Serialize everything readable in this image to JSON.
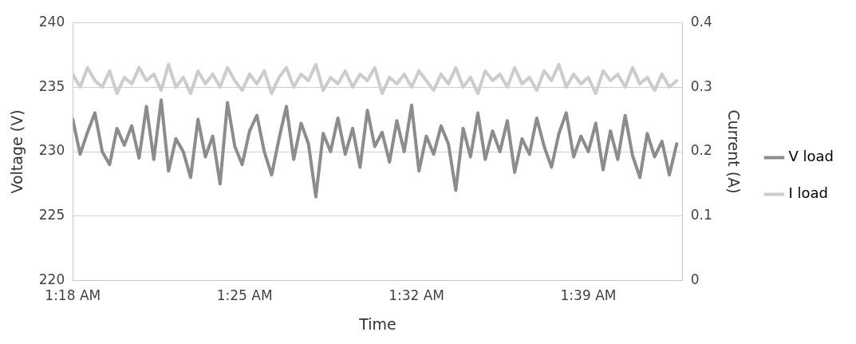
{
  "chart_data": {
    "type": "line",
    "xlabel": "Time",
    "ylabel": "Voltage (V)",
    "y2label": "Current (A)",
    "x": [
      1.3,
      1.305,
      1.31,
      1.315,
      1.32,
      1.325,
      1.33,
      1.335,
      1.34,
      1.345,
      1.35,
      1.355,
      1.36,
      1.365,
      1.37,
      1.375,
      1.38,
      1.385,
      1.39,
      1.395,
      1.4,
      1.405,
      1.41,
      1.415,
      1.42,
      1.425,
      1.43,
      1.435,
      1.44,
      1.445,
      1.45,
      1.455,
      1.46,
      1.465,
      1.47,
      1.475,
      1.48,
      1.485,
      1.49,
      1.495,
      1.5,
      1.505,
      1.51,
      1.515,
      1.52,
      1.525,
      1.53,
      1.535,
      1.54,
      1.545,
      1.55,
      1.555,
      1.56,
      1.565,
      1.57,
      1.575,
      1.58,
      1.585,
      1.59,
      1.595,
      1.6,
      1.605,
      1.61,
      1.615,
      1.62,
      1.625,
      1.63,
      1.635,
      1.64,
      1.645,
      1.65,
      1.655,
      1.66,
      1.665,
      1.67,
      1.675,
      1.68,
      1.685,
      1.69,
      1.695,
      1.7,
      1.705,
      1.71
    ],
    "series": [
      {
        "name": "V load",
        "color": "#8c8c8c",
        "axis": "y",
        "values": [
          232.5,
          229.8,
          231.5,
          233,
          230,
          229,
          231.8,
          230.5,
          232,
          229.5,
          233.5,
          229.4,
          234,
          228.5,
          231,
          230,
          228,
          232.5,
          229.6,
          231.2,
          227.5,
          233.8,
          230.4,
          229,
          231.6,
          232.8,
          230,
          228.2,
          231,
          233.5,
          229.4,
          232.2,
          230.6,
          226.5,
          231.4,
          230,
          232.6,
          229.8,
          231.8,
          228.8,
          233.2,
          230.4,
          231.5,
          229.2,
          232.4,
          230,
          233.6,
          228.5,
          231.2,
          229.8,
          232,
          230.6,
          227,
          231.8,
          229.6,
          233,
          229.4,
          231.6,
          230,
          232.4,
          228.4,
          231,
          229.8,
          232.6,
          230.4,
          228.8,
          231.4,
          233,
          229.6,
          231.2,
          230,
          232.2,
          228.6,
          231.6,
          229.4,
          232.8,
          229.7,
          228,
          231.4,
          229.6,
          230.8,
          228.2,
          230.6
        ]
      },
      {
        "name": "I load",
        "color": "#cccccc",
        "axis": "y2",
        "values": [
          0.32,
          0.3,
          0.33,
          0.31,
          0.3,
          0.325,
          0.29,
          0.315,
          0.305,
          0.33,
          0.31,
          0.32,
          0.295,
          0.335,
          0.3,
          0.315,
          0.29,
          0.325,
          0.305,
          0.32,
          0.3,
          0.33,
          0.31,
          0.295,
          0.32,
          0.305,
          0.325,
          0.29,
          0.315,
          0.33,
          0.3,
          0.32,
          0.31,
          0.335,
          0.295,
          0.315,
          0.305,
          0.325,
          0.3,
          0.32,
          0.31,
          0.33,
          0.29,
          0.315,
          0.305,
          0.32,
          0.3,
          0.325,
          0.31,
          0.295,
          0.32,
          0.305,
          0.33,
          0.3,
          0.315,
          0.29,
          0.325,
          0.31,
          0.32,
          0.3,
          0.33,
          0.305,
          0.315,
          0.295,
          0.325,
          0.31,
          0.335,
          0.3,
          0.32,
          0.305,
          0.315,
          0.29,
          0.325,
          0.31,
          0.32,
          0.3,
          0.33,
          0.305,
          0.315,
          0.295,
          0.32,
          0.3,
          0.31
        ]
      }
    ],
    "xlim": [
      1.3,
      1.714
    ],
    "xticks": [
      {
        "value": 1.3,
        "label": "1:18 AM"
      },
      {
        "value": 1.41667,
        "label": "1:25 AM"
      },
      {
        "value": 1.53333,
        "label": "1:32 AM"
      },
      {
        "value": 1.65,
        "label": "1:39 AM"
      }
    ],
    "ylim": [
      220,
      240
    ],
    "yticks": [
      220,
      225,
      230,
      235,
      240
    ],
    "y2lim": [
      0,
      0.4
    ],
    "y2ticks": [
      0,
      0.1,
      0.2,
      0.3,
      0.4
    ],
    "grid": "y",
    "legend": "right",
    "marker": "none",
    "line_style": "solid"
  }
}
